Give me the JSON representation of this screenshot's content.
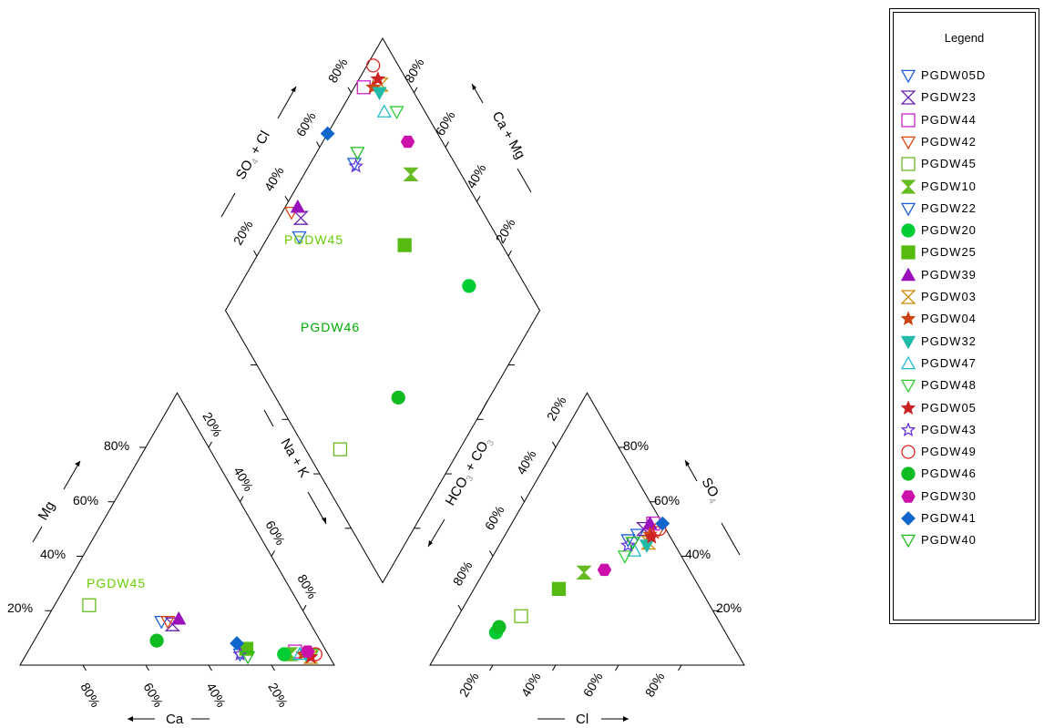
{
  "chart_data": {
    "type": "scatter",
    "subtype": "piper-diagram",
    "cation_triangle": {
      "axis_labels": [
        "Mg",
        "Ca",
        "Na + K"
      ],
      "tick_labels": {
        "Mg": [
          "20%",
          "40%",
          "60%",
          "80%"
        ],
        "Ca": [
          "80%",
          "60%",
          "40%",
          "20%"
        ],
        "NaK": [
          "20%",
          "40%",
          "60%",
          "80%"
        ]
      }
    },
    "anion_triangle": {
      "axis_labels": [
        "SO4",
        "Cl",
        "HCO3 + CO3"
      ],
      "axis_label_parts": {
        "so4": [
          "SO",
          "4"
        ],
        "hco3": [
          "HCO",
          "3",
          " + CO",
          "3"
        ]
      },
      "tick_labels": {
        "SO4": [
          "80%",
          "60%",
          "40%",
          "20%"
        ],
        "Cl": [
          "20%",
          "40%",
          "60%",
          "80%"
        ],
        "HCO3": [
          "20%",
          "40%",
          "60%",
          "80%"
        ]
      }
    },
    "diamond": {
      "axis_labels": [
        "SO4 + Cl",
        "Ca + Mg"
      ],
      "axis_label_parts": {
        "so4cl": [
          "SO",
          "4",
          " + Cl"
        ],
        "camg": "Ca + Mg"
      },
      "tick_labels": {
        "SO4Cl": [
          "20%",
          "40%",
          "60%",
          "80%"
        ],
        "CaMg": [
          "20%",
          "40%",
          "60%",
          "80%"
        ]
      }
    },
    "annotations": [
      {
        "text": "PGDW45",
        "plot": "diamond",
        "color": "#66cc00"
      },
      {
        "text": "PGDW46",
        "plot": "diamond",
        "color": "#00aa00"
      },
      {
        "text": "PGDW45",
        "plot": "cation",
        "color": "#66cc00"
      }
    ],
    "series": [
      {
        "name": "PGDW05D",
        "marker": "triangle-down-open",
        "color": "#1f5fd6",
        "ca": 47,
        "mg": 16,
        "cl": 42,
        "so4": 48
      },
      {
        "name": "PGDW23",
        "marker": "hourglass",
        "color": "#6a1fb0",
        "ca": 44,
        "mg": 15,
        "cl": 43,
        "so4": 50
      },
      {
        "name": "PGDW44",
        "marker": "square-open",
        "color": "#cc22cc",
        "ca": 10,
        "mg": 5,
        "cl": 45,
        "so4": 52
      },
      {
        "name": "PGDW42",
        "marker": "triangle-down-open",
        "color": "#dd4411",
        "ca": 45,
        "mg": 16,
        "cl": 48,
        "so4": 49
      },
      {
        "name": "PGDW45",
        "marker": "square-open",
        "color": "#66bb22",
        "ca": 67,
        "mg": 22,
        "cl": 20,
        "so4": 18
      },
      {
        "name": "PGDW10",
        "marker": "hourglass-filled",
        "color": "#66bb22",
        "ca": 12,
        "mg": 4,
        "cl": 32,
        "so4": 34
      },
      {
        "name": "PGDW22",
        "marker": "triangle-down-open",
        "color": "#1f5fd6",
        "ca": 28,
        "mg": 4,
        "cl": 40,
        "so4": 46
      },
      {
        "name": "PGDW20",
        "marker": "circle-filled",
        "color": "#00cc33",
        "ca": 14,
        "mg": 4,
        "cl": 15,
        "so4": 12
      },
      {
        "name": "PGDW25",
        "marker": "square-filled",
        "color": "#55bb11",
        "ca": 25,
        "mg": 6,
        "cl": 27,
        "so4": 28
      },
      {
        "name": "PGDW39",
        "marker": "triangle-up-filled",
        "color": "#9911bb",
        "ca": 41,
        "mg": 17,
        "cl": 44,
        "so4": 52
      },
      {
        "name": "PGDW03",
        "marker": "hourglass",
        "color": "#cc8800",
        "ca": 6,
        "mg": 3,
        "cl": 47,
        "so4": 45
      },
      {
        "name": "PGDW04",
        "marker": "star-filled",
        "color": "#cc4411",
        "ca": 8,
        "mg": 4,
        "cl": 46,
        "so4": 48
      },
      {
        "name": "PGDW32",
        "marker": "triangle-down-filled",
        "color": "#22bbaa",
        "ca": 7,
        "mg": 4,
        "cl": 47,
        "so4": 44
      },
      {
        "name": "PGDW47",
        "marker": "triangle-up-open",
        "color": "#22bbcc",
        "ca": 9,
        "mg": 4,
        "cl": 44,
        "so4": 42
      },
      {
        "name": "PGDW48",
        "marker": "triangle-down-open",
        "color": "#33cc33",
        "ca": 5,
        "mg": 4,
        "cl": 42,
        "so4": 40
      },
      {
        "name": "PGDW05",
        "marker": "star-filled",
        "color": "#cc2222",
        "ca": 6,
        "mg": 3,
        "cl": 47,
        "so4": 47
      },
      {
        "name": "PGDW43",
        "marker": "star-open",
        "color": "#6633dd",
        "ca": 28,
        "mg": 4,
        "cl": 41,
        "so4": 44
      },
      {
        "name": "PGDW49",
        "marker": "circle-open",
        "color": "#dd2222",
        "ca": 4,
        "mg": 4,
        "cl": 48,
        "so4": 50
      },
      {
        "name": "PGDW46",
        "marker": "circle-filled",
        "color": "#11bb22",
        "ca": 52,
        "mg": 9,
        "cl": 15,
        "so4": 14
      },
      {
        "name": "PGDW30",
        "marker": "hexagon-filled",
        "color": "#cc11aa",
        "ca": 6,
        "mg": 5,
        "cl": 38,
        "so4": 35
      },
      {
        "name": "PGDW41",
        "marker": "diamond-filled",
        "color": "#1166cc",
        "ca": 27,
        "mg": 8,
        "cl": 48,
        "so4": 52
      },
      {
        "name": "PGDW40",
        "marker": "triangle-down-open",
        "color": "#22bb22",
        "ca": 26,
        "mg": 3,
        "cl": 42,
        "so4": 45
      }
    ]
  },
  "legend": {
    "title": "Legend"
  }
}
